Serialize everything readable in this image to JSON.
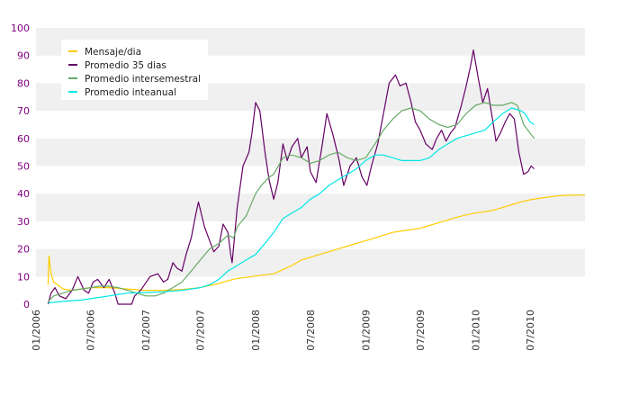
{
  "chart_data": {
    "type": "line",
    "title": "",
    "xlabel": "",
    "ylabel": "",
    "ylim": [
      0,
      100
    ],
    "y_ticks": [
      "0",
      "10",
      "20",
      "30",
      "40",
      "50",
      "60",
      "70",
      "80",
      "90",
      "100"
    ],
    "x_range": [
      "2006-01-01",
      "2010-12-31"
    ],
    "x_ticks": [
      {
        "date": "2006-01-01",
        "label": "01/2006"
      },
      {
        "date": "2006-07-01",
        "label": "07/2006"
      },
      {
        "date": "2007-01-01",
        "label": "01/2007"
      },
      {
        "date": "2007-07-01",
        "label": "07/2007"
      },
      {
        "date": "2008-01-01",
        "label": "01/2008"
      },
      {
        "date": "2008-07-01",
        "label": "07/2008"
      },
      {
        "date": "2009-01-01",
        "label": "01/2009"
      },
      {
        "date": "2009-07-01",
        "label": "07/2009"
      },
      {
        "date": "2010-01-01",
        "label": "01/2010"
      },
      {
        "date": "2010-07-01",
        "label": "07/2010"
      }
    ],
    "grid": "horizontal bands",
    "legend_position": "top-left",
    "series": [
      {
        "name": "Mensaje/dia",
        "color": "#ffcc00",
        "points": [
          [
            "2006-02-10",
            7
          ],
          [
            "2006-02-13",
            17.5
          ],
          [
            "2006-02-20",
            11
          ],
          [
            "2006-03-01",
            8
          ],
          [
            "2006-04-01",
            5.5
          ],
          [
            "2006-05-01",
            5
          ],
          [
            "2006-06-01",
            5.5
          ],
          [
            "2006-07-01",
            6
          ],
          [
            "2006-09-01",
            6
          ],
          [
            "2006-11-01",
            5.5
          ],
          [
            "2007-01-01",
            5
          ],
          [
            "2007-03-01",
            5
          ],
          [
            "2007-05-01",
            5.3
          ],
          [
            "2007-07-01",
            6
          ],
          [
            "2007-09-01",
            7.5
          ],
          [
            "2007-10-01",
            8.5
          ],
          [
            "2007-11-01",
            9.3
          ],
          [
            "2007-12-01",
            9.7
          ],
          [
            "2008-01-01",
            10.2
          ],
          [
            "2008-03-01",
            11
          ],
          [
            "2008-04-01",
            12.5
          ],
          [
            "2008-05-01",
            14
          ],
          [
            "2008-06-01",
            16
          ],
          [
            "2008-07-01",
            17
          ],
          [
            "2008-08-01",
            18
          ],
          [
            "2008-09-01",
            19
          ],
          [
            "2008-10-01",
            20
          ],
          [
            "2008-11-01",
            21
          ],
          [
            "2008-12-01",
            22
          ],
          [
            "2009-01-01",
            23
          ],
          [
            "2009-02-01",
            24
          ],
          [
            "2009-03-01",
            25
          ],
          [
            "2009-04-01",
            26
          ],
          [
            "2009-05-01",
            26.5
          ],
          [
            "2009-06-01",
            27
          ],
          [
            "2009-07-01",
            27.5
          ],
          [
            "2009-08-01",
            28.5
          ],
          [
            "2009-09-01",
            29.5
          ],
          [
            "2009-10-01",
            30.5
          ],
          [
            "2009-11-01",
            31.5
          ],
          [
            "2009-12-01",
            32.3
          ],
          [
            "2010-01-01",
            33
          ],
          [
            "2010-02-01",
            33.5
          ],
          [
            "2010-03-01",
            34
          ],
          [
            "2010-04-01",
            35
          ],
          [
            "2010-05-01",
            36
          ],
          [
            "2010-06-01",
            37
          ],
          [
            "2010-07-01",
            37.8
          ],
          [
            "2010-08-01",
            38.3
          ],
          [
            "2010-09-01",
            38.8
          ],
          [
            "2010-10-01",
            39.2
          ],
          [
            "2010-11-01",
            39.4
          ],
          [
            "2010-12-31",
            39.5
          ]
        ]
      },
      {
        "name": "Promedio 35 dias",
        "color": "#660066",
        "points": [
          [
            "2006-02-10",
            0
          ],
          [
            "2006-02-20",
            4
          ],
          [
            "2006-03-05",
            6
          ],
          [
            "2006-03-20",
            3
          ],
          [
            "2006-04-10",
            2
          ],
          [
            "2006-05-01",
            5
          ],
          [
            "2006-05-20",
            10
          ],
          [
            "2006-06-10",
            5
          ],
          [
            "2006-06-25",
            4
          ],
          [
            "2006-07-10",
            8
          ],
          [
            "2006-07-25",
            9
          ],
          [
            "2006-08-15",
            6
          ],
          [
            "2006-09-01",
            9
          ],
          [
            "2006-09-20",
            4
          ],
          [
            "2006-10-01",
            0
          ],
          [
            "2006-11-15",
            0
          ],
          [
            "2006-11-25",
            3
          ],
          [
            "2006-12-15",
            5
          ],
          [
            "2007-01-15",
            10
          ],
          [
            "2007-02-10",
            11
          ],
          [
            "2007-03-01",
            8
          ],
          [
            "2007-03-15",
            9
          ],
          [
            "2007-04-01",
            15
          ],
          [
            "2007-04-15",
            13
          ],
          [
            "2007-05-01",
            12
          ],
          [
            "2007-05-15",
            18
          ],
          [
            "2007-06-01",
            24
          ],
          [
            "2007-06-15",
            32
          ],
          [
            "2007-06-25",
            37
          ],
          [
            "2007-07-15",
            28
          ],
          [
            "2007-08-01",
            23
          ],
          [
            "2007-08-15",
            19
          ],
          [
            "2007-09-01",
            21
          ],
          [
            "2007-09-15",
            29
          ],
          [
            "2007-10-01",
            26
          ],
          [
            "2007-10-10",
            18
          ],
          [
            "2007-10-15",
            15
          ],
          [
            "2007-11-01",
            35
          ],
          [
            "2007-11-20",
            50
          ],
          [
            "2007-12-10",
            55
          ],
          [
            "2007-12-20",
            62
          ],
          [
            "2008-01-01",
            73
          ],
          [
            "2008-01-15",
            70
          ],
          [
            "2008-02-01",
            55
          ],
          [
            "2008-02-15",
            45
          ],
          [
            "2008-03-01",
            38
          ],
          [
            "2008-03-15",
            44
          ],
          [
            "2008-04-01",
            58
          ],
          [
            "2008-04-15",
            52
          ],
          [
            "2008-05-01",
            57
          ],
          [
            "2008-05-20",
            60
          ],
          [
            "2008-06-01",
            53
          ],
          [
            "2008-06-20",
            57
          ],
          [
            "2008-07-01",
            48
          ],
          [
            "2008-07-20",
            44
          ],
          [
            "2008-08-10",
            58
          ],
          [
            "2008-08-25",
            69
          ],
          [
            "2008-09-15",
            61
          ],
          [
            "2008-10-05",
            52
          ],
          [
            "2008-10-20",
            43
          ],
          [
            "2008-11-10",
            50
          ],
          [
            "2008-12-01",
            53
          ],
          [
            "2008-12-20",
            46
          ],
          [
            "2009-01-05",
            43
          ],
          [
            "2009-01-20",
            50
          ],
          [
            "2009-02-10",
            58
          ],
          [
            "2009-03-01",
            69
          ],
          [
            "2009-03-20",
            80
          ],
          [
            "2009-04-10",
            83
          ],
          [
            "2009-04-25",
            79
          ],
          [
            "2009-05-15",
            80
          ],
          [
            "2009-06-01",
            73
          ],
          [
            "2009-06-15",
            66
          ],
          [
            "2009-07-01",
            63
          ],
          [
            "2009-07-20",
            58
          ],
          [
            "2009-08-10",
            56
          ],
          [
            "2009-08-25",
            60
          ],
          [
            "2009-09-10",
            63
          ],
          [
            "2009-09-25",
            59
          ],
          [
            "2009-10-10",
            62
          ],
          [
            "2009-10-25",
            64
          ],
          [
            "2009-11-15",
            72
          ],
          [
            "2009-12-01",
            79
          ],
          [
            "2009-12-15",
            86
          ],
          [
            "2009-12-25",
            92
          ],
          [
            "2010-01-10",
            82
          ],
          [
            "2010-01-25",
            73
          ],
          [
            "2010-02-10",
            78
          ],
          [
            "2010-02-25",
            68
          ],
          [
            "2010-03-10",
            59
          ],
          [
            "2010-03-25",
            62
          ],
          [
            "2010-04-10",
            66
          ],
          [
            "2010-04-25",
            69
          ],
          [
            "2010-05-10",
            67
          ],
          [
            "2010-05-25",
            55
          ],
          [
            "2010-06-10",
            47
          ],
          [
            "2010-06-25",
            48
          ],
          [
            "2010-07-05",
            50
          ],
          [
            "2010-07-15",
            49
          ]
        ]
      },
      {
        "name": "Promedio intersemestral",
        "color": "#66aa66",
        "points": [
          [
            "2006-02-10",
            1
          ],
          [
            "2006-03-01",
            3
          ],
          [
            "2006-04-01",
            4
          ],
          [
            "2006-05-01",
            5
          ],
          [
            "2006-06-01",
            5.5
          ],
          [
            "2006-07-01",
            6
          ],
          [
            "2006-08-01",
            6.5
          ],
          [
            "2006-09-01",
            6.5
          ],
          [
            "2006-10-01",
            6
          ],
          [
            "2006-11-01",
            5
          ],
          [
            "2006-12-01",
            4
          ],
          [
            "2007-01-01",
            3
          ],
          [
            "2007-02-01",
            3
          ],
          [
            "2007-03-01",
            4
          ],
          [
            "2007-04-01",
            6
          ],
          [
            "2007-05-01",
            8
          ],
          [
            "2007-06-01",
            12
          ],
          [
            "2007-07-01",
            16
          ],
          [
            "2007-08-01",
            20
          ],
          [
            "2007-09-01",
            22
          ],
          [
            "2007-10-01",
            25
          ],
          [
            "2007-10-20",
            24
          ],
          [
            "2007-11-01",
            28
          ],
          [
            "2007-12-01",
            32
          ],
          [
            "2008-01-01",
            40
          ],
          [
            "2008-01-20",
            43
          ],
          [
            "2008-02-15",
            46
          ],
          [
            "2008-03-01",
            47
          ],
          [
            "2008-04-01",
            53
          ],
          [
            "2008-05-01",
            54
          ],
          [
            "2008-06-01",
            53
          ],
          [
            "2008-07-01",
            51
          ],
          [
            "2008-08-01",
            52
          ],
          [
            "2008-09-01",
            54
          ],
          [
            "2008-10-01",
            55
          ],
          [
            "2008-11-01",
            53
          ],
          [
            "2008-12-01",
            52
          ],
          [
            "2009-01-01",
            53
          ],
          [
            "2009-02-01",
            58
          ],
          [
            "2009-03-01",
            63
          ],
          [
            "2009-04-01",
            67
          ],
          [
            "2009-05-01",
            70
          ],
          [
            "2009-06-01",
            71
          ],
          [
            "2009-07-01",
            70
          ],
          [
            "2009-08-01",
            67
          ],
          [
            "2009-09-01",
            65
          ],
          [
            "2009-10-01",
            64
          ],
          [
            "2009-11-01",
            65
          ],
          [
            "2009-12-01",
            69
          ],
          [
            "2010-01-01",
            72
          ],
          [
            "2010-02-01",
            73
          ],
          [
            "2010-03-01",
            72
          ],
          [
            "2010-04-01",
            72
          ],
          [
            "2010-05-01",
            73
          ],
          [
            "2010-05-20",
            72
          ],
          [
            "2010-06-10",
            65
          ],
          [
            "2010-07-01",
            62
          ],
          [
            "2010-07-15",
            60
          ]
        ]
      },
      {
        "name": "Promedio inteanual",
        "color": "#00e6e6",
        "points": [
          [
            "2006-02-10",
            0.5
          ],
          [
            "2006-04-01",
            1
          ],
          [
            "2006-06-01",
            1.5
          ],
          [
            "2006-07-01",
            2
          ],
          [
            "2006-09-01",
            3
          ],
          [
            "2006-11-01",
            4
          ],
          [
            "2007-01-01",
            4.2
          ],
          [
            "2007-03-01",
            4.5
          ],
          [
            "2007-05-01",
            5
          ],
          [
            "2007-07-01",
            6
          ],
          [
            "2007-08-01",
            7
          ],
          [
            "2007-09-01",
            9
          ],
          [
            "2007-10-01",
            12
          ],
          [
            "2007-11-01",
            14
          ],
          [
            "2007-12-01",
            16
          ],
          [
            "2008-01-01",
            18
          ],
          [
            "2008-02-01",
            22
          ],
          [
            "2008-03-01",
            26
          ],
          [
            "2008-04-01",
            31
          ],
          [
            "2008-05-01",
            33
          ],
          [
            "2008-06-01",
            35
          ],
          [
            "2008-07-01",
            38
          ],
          [
            "2008-08-01",
            40
          ],
          [
            "2008-09-01",
            43
          ],
          [
            "2008-10-01",
            45
          ],
          [
            "2008-11-01",
            47
          ],
          [
            "2008-12-01",
            49
          ],
          [
            "2009-01-01",
            52
          ],
          [
            "2009-02-01",
            54
          ],
          [
            "2009-03-01",
            54
          ],
          [
            "2009-04-01",
            53
          ],
          [
            "2009-05-01",
            52
          ],
          [
            "2009-06-01",
            52
          ],
          [
            "2009-07-01",
            52
          ],
          [
            "2009-08-01",
            53
          ],
          [
            "2009-09-01",
            56
          ],
          [
            "2009-10-01",
            58
          ],
          [
            "2009-11-01",
            60
          ],
          [
            "2009-12-01",
            61
          ],
          [
            "2010-01-01",
            62
          ],
          [
            "2010-02-01",
            63
          ],
          [
            "2010-03-01",
            66
          ],
          [
            "2010-04-01",
            69
          ],
          [
            "2010-05-01",
            71
          ],
          [
            "2010-06-01",
            70
          ],
          [
            "2010-06-15",
            69
          ],
          [
            "2010-07-01",
            66
          ],
          [
            "2010-07-15",
            65
          ]
        ]
      }
    ]
  }
}
